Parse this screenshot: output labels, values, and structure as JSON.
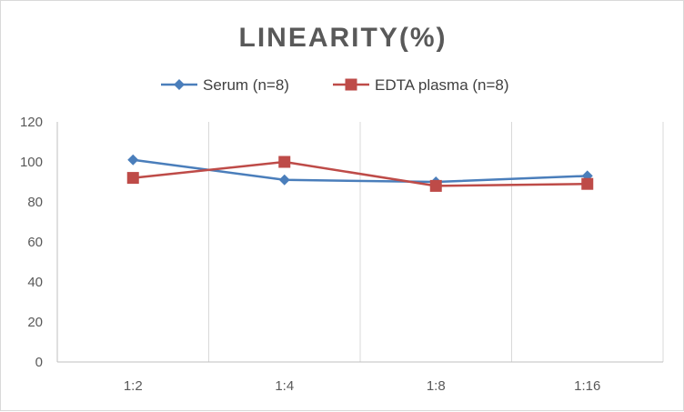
{
  "chart_data": {
    "type": "line",
    "title": "LINEARITY(%)",
    "xlabel": "",
    "ylabel": "",
    "categories": [
      "1:2",
      "1:4",
      "1:8",
      "1:16"
    ],
    "ylim": [
      0,
      120
    ],
    "yticks": [
      0,
      20,
      40,
      60,
      80,
      100,
      120
    ],
    "grid": "vertical",
    "legend_position": "top",
    "series": [
      {
        "name": "Serum (n=8)",
        "values": [
          101,
          91,
          90,
          93
        ],
        "color": "#4a7ebb",
        "marker": "diamond"
      },
      {
        "name": "EDTA plasma (n=8)",
        "values": [
          92,
          100,
          88,
          89
        ],
        "color": "#be4b48",
        "marker": "square"
      }
    ]
  }
}
